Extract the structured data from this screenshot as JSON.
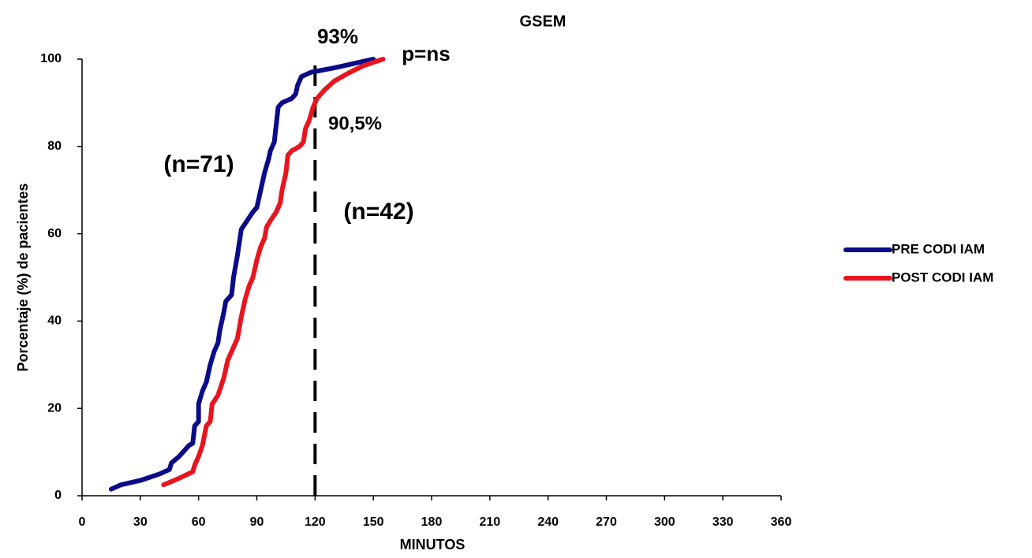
{
  "chart_data": {
    "type": "line",
    "title": "GSEM",
    "x_label": "MINUTOS",
    "y_label": "Porcentaje (%) de pacientes",
    "xlim": [
      0,
      360
    ],
    "xticks": [
      0,
      30,
      60,
      90,
      120,
      150,
      180,
      210,
      240,
      270,
      300,
      330,
      360
    ],
    "ylim": [
      0,
      100
    ],
    "yticks": [
      0,
      20,
      40,
      60,
      80,
      100
    ],
    "vline": 120,
    "series": [
      {
        "name": "PRE CODI IAM",
        "color": "#0b0b8a",
        "x": [
          15,
          20,
          30,
          40,
          45,
          46,
          50,
          55,
          57,
          58,
          60,
          60,
          62,
          64,
          66,
          68,
          70,
          71,
          73,
          74,
          77,
          78,
          80,
          81,
          82,
          85,
          88,
          90,
          92,
          94,
          96,
          97,
          99,
          100,
          101,
          103,
          108,
          110,
          111,
          113,
          118,
          130,
          145,
          150
        ],
        "values": [
          1.5,
          2.5,
          3.5,
          5,
          6,
          7.5,
          9,
          11.5,
          12,
          16,
          17,
          21,
          24,
          26,
          30,
          33,
          35,
          38,
          42,
          44.5,
          46,
          50,
          55,
          58,
          61,
          63,
          65,
          66,
          70,
          74,
          77,
          79,
          81,
          85,
          89,
          90,
          91,
          92,
          94,
          96,
          97,
          98,
          99.5,
          100
        ]
      },
      {
        "name": "POST CODI IAM",
        "color": "#e8141e",
        "x": [
          42,
          50,
          57,
          58,
          60,
          62,
          64,
          66,
          67,
          70,
          73,
          75,
          78,
          80,
          82,
          84,
          86,
          88,
          90,
          92,
          94,
          95,
          97,
          100,
          102,
          103,
          105,
          106,
          108,
          112,
          114,
          115,
          117,
          119,
          121,
          125,
          130,
          138,
          145,
          155
        ],
        "values": [
          2.5,
          4,
          5.5,
          7,
          9,
          11.5,
          16,
          17,
          21,
          23,
          27,
          31,
          34,
          36,
          41,
          45,
          48,
          50,
          54,
          57,
          59,
          61.5,
          63,
          65,
          67,
          70,
          74,
          78,
          79,
          80,
          81,
          84,
          86,
          89,
          91,
          93,
          95,
          97,
          98.5,
          100
        ]
      }
    ],
    "annotations": [
      {
        "text": "93%",
        "color": "#1f3a5a"
      },
      {
        "text": "p=ns",
        "color": "#000000"
      },
      {
        "text": "90,5%",
        "color": "#e8141e"
      },
      {
        "text": "(n=71)",
        "color": "#000000"
      },
      {
        "text": "(n=42)",
        "color": "#000000"
      }
    ]
  }
}
